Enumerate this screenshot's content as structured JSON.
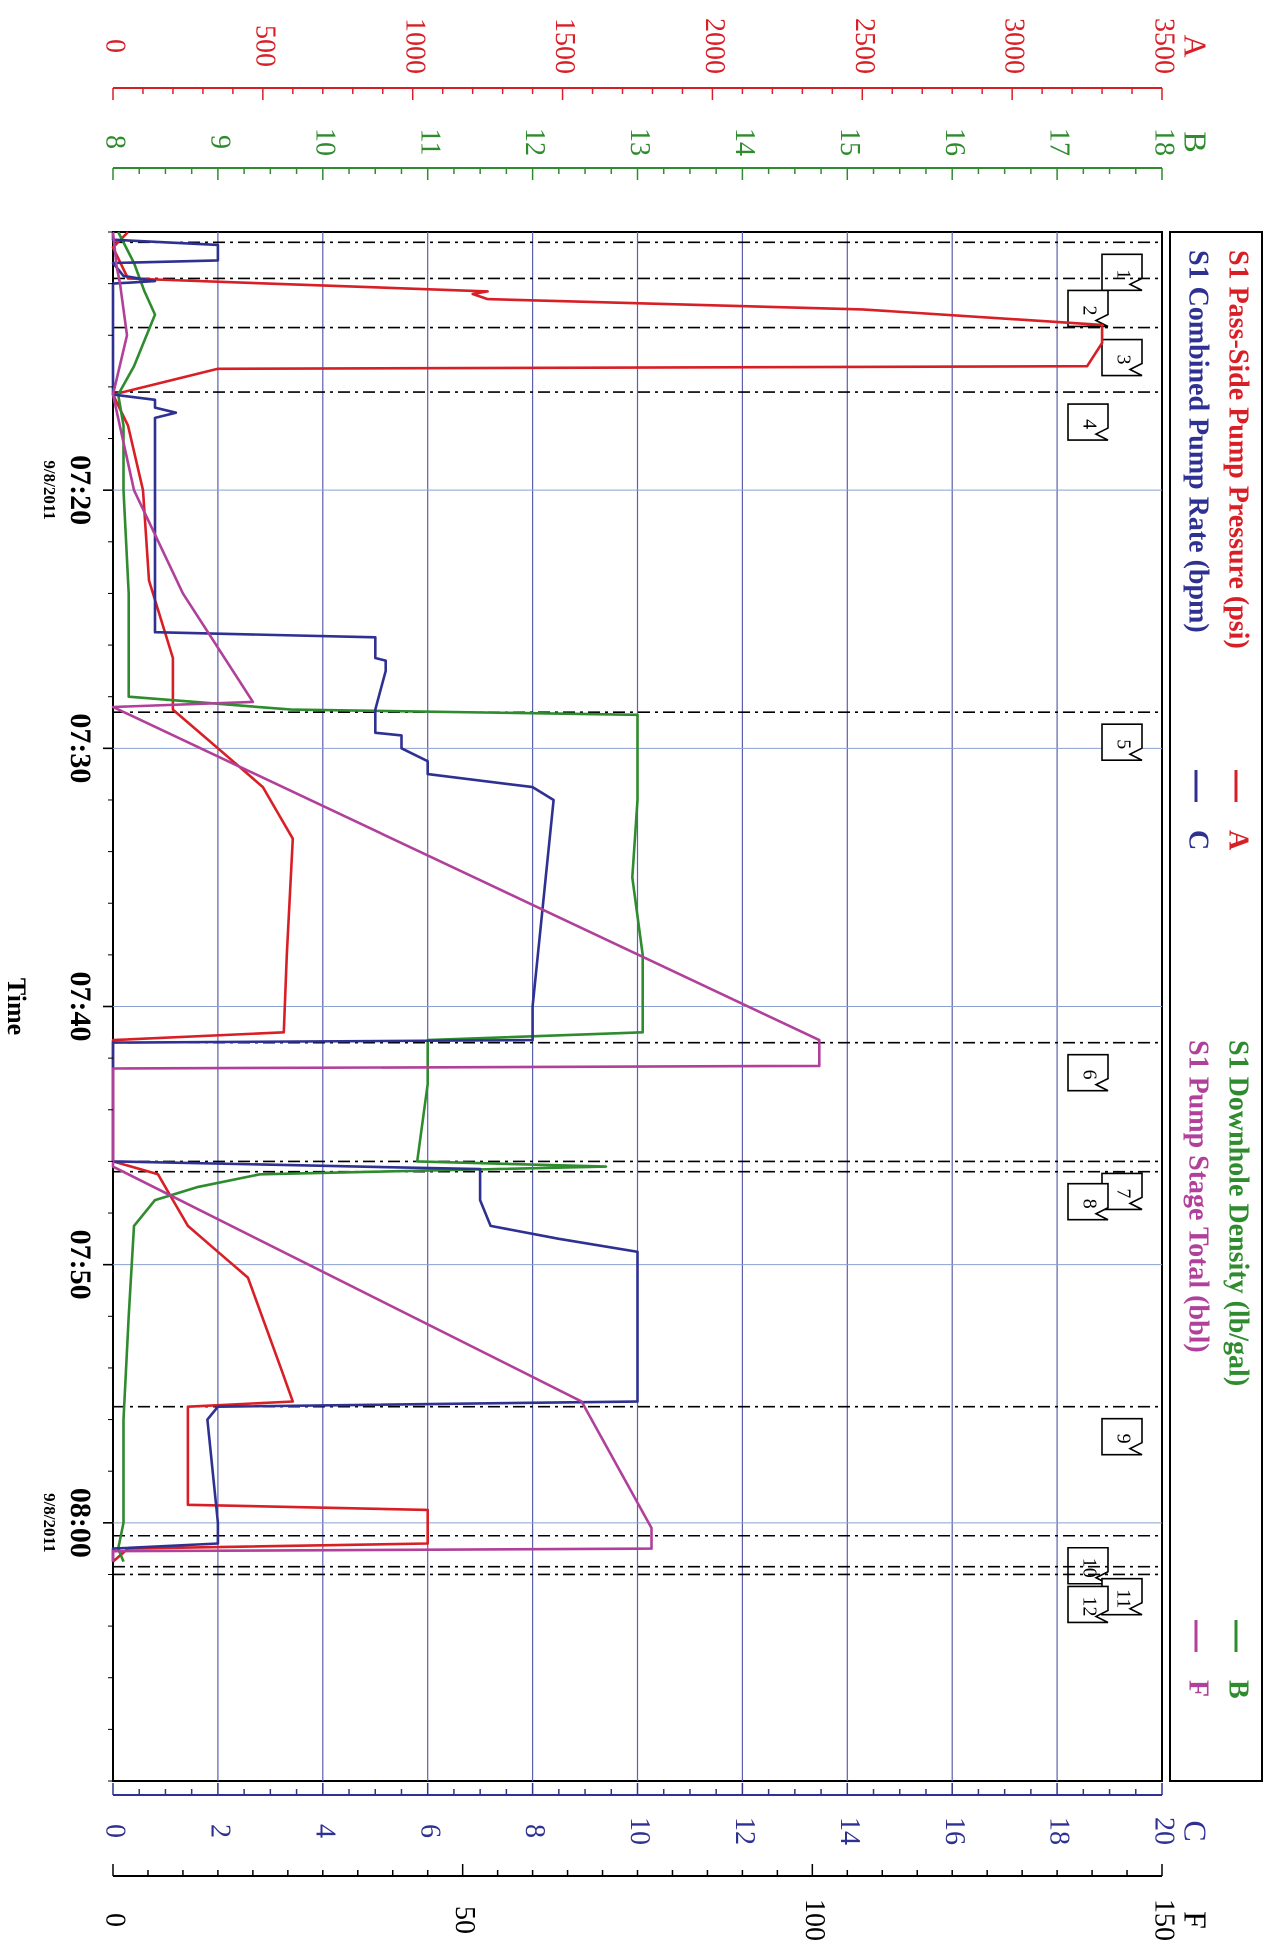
{
  "chart_data": {
    "type": "line",
    "x_axis": {
      "label": "Time",
      "range_minutes": [
        0,
        60
      ],
      "ticks": [
        {
          "t": 10,
          "label": "07:20",
          "date": "9/8/2011"
        },
        {
          "t": 20,
          "label": "07:30"
        },
        {
          "t": 30,
          "label": "07:40"
        },
        {
          "t": 40,
          "label": "07:50"
        },
        {
          "t": 50,
          "label": "08:00",
          "date": "9/8/2011"
        }
      ]
    },
    "axes": {
      "A": {
        "letter": "A",
        "color": "#d81f26",
        "range": [
          0,
          3500
        ],
        "tick_labels": [
          "0",
          "500",
          "1000",
          "1500",
          "2000",
          "2500",
          "3000",
          "3500"
        ]
      },
      "B": {
        "letter": "B",
        "color": "#2e8b2e",
        "range": [
          8,
          18
        ],
        "tick_labels": [
          "8",
          "9",
          "10",
          "11",
          "12",
          "13",
          "14",
          "15",
          "16",
          "17",
          "18"
        ]
      },
      "C": {
        "letter": "C",
        "color": "#2e3192",
        "range": [
          0,
          20
        ],
        "tick_labels": [
          "0",
          "2",
          "4",
          "6",
          "8",
          "10",
          "12",
          "14",
          "16",
          "18",
          "20"
        ]
      },
      "F": {
        "letter": "F",
        "color": "#000000",
        "range": [
          0,
          150
        ],
        "tick_labels": [
          "0",
          "50",
          "100",
          "150"
        ]
      }
    },
    "legend": {
      "placement": "right",
      "items": [
        {
          "text": "S1 Pass-Side Pump Pressure (psi)",
          "axis": "A",
          "color": "#d81f26"
        },
        {
          "text": "S1 Downhole Density (lb/gal)",
          "axis": "B",
          "color": "#2e8b2e"
        },
        {
          "text": "S1 Combined Pump Rate (bpm)",
          "axis": "C",
          "color": "#2e3192"
        },
        {
          "text": "S1 Pump Stage Total (bbl)",
          "axis": "F",
          "color": "#b0409a"
        }
      ]
    },
    "series": [
      {
        "name": "S1 Pass-Side Pump Pressure (psi)",
        "axis": "A",
        "color": "#d81f26",
        "points": [
          [
            0,
            50
          ],
          [
            0.6,
            0
          ],
          [
            1.8,
            50
          ],
          [
            2.3,
            1250
          ],
          [
            2.4,
            1200
          ],
          [
            2.6,
            1250
          ],
          [
            3.0,
            2500
          ],
          [
            3.6,
            3300
          ],
          [
            4.3,
            3300
          ],
          [
            5.2,
            3250
          ],
          [
            5.3,
            350
          ],
          [
            6.3,
            0
          ],
          [
            7.5,
            50
          ],
          [
            10,
            100
          ],
          [
            13.5,
            120
          ],
          [
            16.5,
            200
          ],
          [
            18.5,
            200
          ],
          [
            19.5,
            300
          ],
          [
            20.5,
            400
          ],
          [
            21.5,
            500
          ],
          [
            22.5,
            550
          ],
          [
            23.5,
            600
          ],
          [
            28,
            580
          ],
          [
            31,
            570
          ],
          [
            31.3,
            0
          ],
          [
            36,
            0
          ],
          [
            36.5,
            150
          ],
          [
            37.5,
            200
          ],
          [
            38.5,
            250
          ],
          [
            39.5,
            350
          ],
          [
            40.5,
            450
          ],
          [
            44,
            560
          ],
          [
            45.3,
            600
          ],
          [
            45.5,
            250
          ],
          [
            47,
            250
          ],
          [
            47.5,
            250
          ],
          [
            49.3,
            250
          ],
          [
            49.5,
            1050
          ],
          [
            50.8,
            1050
          ],
          [
            51,
            50
          ],
          [
            51.5,
            0
          ]
        ]
      },
      {
        "name": "S1 Downhole Density (lb/gal)",
        "axis": "B",
        "color": "#2e8b2e",
        "points": [
          [
            0,
            8.05
          ],
          [
            1.2,
            8.2
          ],
          [
            2.3,
            8.3
          ],
          [
            3.2,
            8.4
          ],
          [
            4.2,
            8.3
          ],
          [
            5.2,
            8.2
          ],
          [
            6.3,
            8.05
          ],
          [
            7.5,
            8.1
          ],
          [
            10,
            8.1
          ],
          [
            14,
            8.15
          ],
          [
            18,
            8.15
          ],
          [
            18.5,
            9.7
          ],
          [
            18.7,
            13.0
          ],
          [
            20,
            13.0
          ],
          [
            22,
            13.0
          ],
          [
            25,
            12.95
          ],
          [
            28,
            13.05
          ],
          [
            31,
            13.05
          ],
          [
            31.3,
            11.0
          ],
          [
            33,
            11.0
          ],
          [
            36,
            10.9
          ],
          [
            36.2,
            12.7
          ],
          [
            36.5,
            9.4
          ],
          [
            37,
            8.8
          ],
          [
            37.5,
            8.4
          ],
          [
            38.5,
            8.2
          ],
          [
            42,
            8.15
          ],
          [
            46,
            8.1
          ],
          [
            50,
            8.1
          ],
          [
            51,
            8.05
          ],
          [
            51.5,
            8.1
          ]
        ]
      },
      {
        "name": "S1 Combined Pump Rate (bpm)",
        "axis": "C",
        "color": "#2e3192",
        "points": [
          [
            0,
            0
          ],
          [
            0.3,
            0
          ],
          [
            0.5,
            2.0
          ],
          [
            1.1,
            2.0
          ],
          [
            1.2,
            0
          ],
          [
            1.7,
            0.2
          ],
          [
            1.9,
            0.8
          ],
          [
            2.0,
            0
          ],
          [
            6.3,
            0
          ],
          [
            6.5,
            0.8
          ],
          [
            6.8,
            0.8
          ],
          [
            7.0,
            1.2
          ],
          [
            7.2,
            0.8
          ],
          [
            12.0,
            0.8
          ],
          [
            15.5,
            0.8
          ],
          [
            15.7,
            5.0
          ],
          [
            16.5,
            5.0
          ],
          [
            16.6,
            5.2
          ],
          [
            17.0,
            5.2
          ],
          [
            18.5,
            5.0
          ],
          [
            19.0,
            5.0
          ],
          [
            19.4,
            5.0
          ],
          [
            19.5,
            5.5
          ],
          [
            20.0,
            5.5
          ],
          [
            20.5,
            6.0
          ],
          [
            21.0,
            6.0
          ],
          [
            21.5,
            8.0
          ],
          [
            22.0,
            8.4
          ],
          [
            30.0,
            8.0
          ],
          [
            31.3,
            8.0
          ],
          [
            31.4,
            0
          ],
          [
            36.0,
            0
          ],
          [
            36.3,
            7.0
          ],
          [
            37.0,
            7.0
          ],
          [
            37.5,
            7.0
          ],
          [
            38.5,
            7.2
          ],
          [
            39.0,
            8.5
          ],
          [
            39.5,
            10.0
          ],
          [
            40.0,
            10.0
          ],
          [
            44.0,
            10.0
          ],
          [
            45.3,
            10.0
          ],
          [
            45.5,
            2.0
          ],
          [
            46.0,
            1.8
          ],
          [
            50.0,
            2.0
          ],
          [
            50.8,
            2.0
          ],
          [
            51.0,
            0
          ],
          [
            51.5,
            0
          ]
        ]
      },
      {
        "name": "S1 Pump Stage Total (bbl)",
        "axis": "F",
        "color": "#b0409a",
        "points": [
          [
            0,
            0
          ],
          [
            1.3,
            0.5
          ],
          [
            2.0,
            1.0
          ],
          [
            4.0,
            2.0
          ],
          [
            6.3,
            0
          ],
          [
            10,
            3
          ],
          [
            14,
            10
          ],
          [
            18.2,
            20
          ],
          [
            18.4,
            0
          ],
          [
            31.3,
            101
          ],
          [
            32.3,
            101
          ],
          [
            32.4,
            0
          ],
          [
            36.0,
            0
          ],
          [
            36.2,
            0
          ],
          [
            45.3,
            67
          ],
          [
            50.2,
            77
          ],
          [
            51.0,
            77
          ],
          [
            51.1,
            0
          ],
          [
            51.5,
            0
          ]
        ]
      }
    ],
    "markers": [
      {
        "t": 0.4,
        "label": "1"
      },
      {
        "t": 1.8,
        "label": "2"
      },
      {
        "t": 3.7,
        "label": "3"
      },
      {
        "t": 6.2,
        "label": "4"
      },
      {
        "t": 18.6,
        "label": "5"
      },
      {
        "t": 31.4,
        "label": "6"
      },
      {
        "t": 36.0,
        "label": "7"
      },
      {
        "t": 36.4,
        "label": "8"
      },
      {
        "t": 45.5,
        "label": "9"
      },
      {
        "t": 50.5,
        "label": "10"
      },
      {
        "t": 51.7,
        "label": "11"
      },
      {
        "t": 52.0,
        "label": "12"
      }
    ],
    "grid": true
  }
}
